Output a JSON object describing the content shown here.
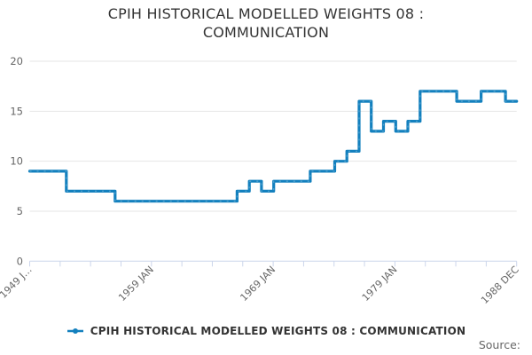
{
  "title": "CPIH HISTORICAL MODELLED WEIGHTS 08 : COMMUNICATION",
  "source_label": "Source:",
  "legend": {
    "label": "CPIH HISTORICAL MODELLED WEIGHTS 08 : COMMUNICATION",
    "marker_color": "#1380be"
  },
  "colors": {
    "line": "#1380be",
    "grid": "#e6e6e6",
    "axis_line": "#ccd6eb",
    "axis_text": "#666666",
    "title_text": "#333333",
    "source_text": "#666666"
  },
  "chart_data": {
    "type": "line",
    "step": true,
    "title": "CPIH HISTORICAL MODELLED WEIGHTS 08 : COMMUNICATION",
    "legend_position": "bottom-center",
    "grid": "horizontal-only",
    "x_axis": {
      "label": "",
      "start": "1949 JAN",
      "end": "1988 DEC",
      "total_months": 480,
      "tick_count": 17,
      "label_every_n_ticks": 4,
      "tick_labels": [
        "1949 J…",
        "1959 JAN",
        "1969 JAN",
        "1979 JAN",
        "1988 DEC"
      ],
      "tick_label_rotation": -45
    },
    "y_axis": {
      "label": "",
      "min": 0,
      "max": 20,
      "ticks": [
        0,
        5,
        10,
        15,
        20
      ]
    },
    "series": [
      {
        "name": "CPIH HISTORICAL MODELLED WEIGHTS 08 : COMMUNICATION",
        "color": "#1380be",
        "points": [
          {
            "date": "1949 JAN",
            "month_index": 0,
            "value": 9
          },
          {
            "date": "1952 JAN",
            "month_index": 36,
            "value": 7
          },
          {
            "date": "1956 JAN",
            "month_index": 84,
            "value": 6
          },
          {
            "date": "1966 JAN",
            "month_index": 204,
            "value": 7
          },
          {
            "date": "1967 JAN",
            "month_index": 216,
            "value": 8
          },
          {
            "date": "1968 JAN",
            "month_index": 228,
            "value": 7
          },
          {
            "date": "1969 JAN",
            "month_index": 240,
            "value": 8
          },
          {
            "date": "1972 JAN",
            "month_index": 276,
            "value": 9
          },
          {
            "date": "1974 JAN",
            "month_index": 300,
            "value": 10
          },
          {
            "date": "1975 JAN",
            "month_index": 312,
            "value": 11
          },
          {
            "date": "1976 JAN",
            "month_index": 324,
            "value": 16
          },
          {
            "date": "1977 JAN",
            "month_index": 336,
            "value": 13
          },
          {
            "date": "1978 JAN",
            "month_index": 348,
            "value": 14
          },
          {
            "date": "1979 JAN",
            "month_index": 360,
            "value": 13
          },
          {
            "date": "1980 JAN",
            "month_index": 372,
            "value": 14
          },
          {
            "date": "1981 JAN",
            "month_index": 384,
            "value": 17
          },
          {
            "date": "1984 JAN",
            "month_index": 420,
            "value": 16
          },
          {
            "date": "1986 JAN",
            "month_index": 444,
            "value": 17
          },
          {
            "date": "1988 JAN",
            "month_index": 468,
            "value": 16
          }
        ],
        "series_end": {
          "date": "1988 DEC",
          "month_index": 479,
          "value": 16
        }
      }
    ]
  }
}
